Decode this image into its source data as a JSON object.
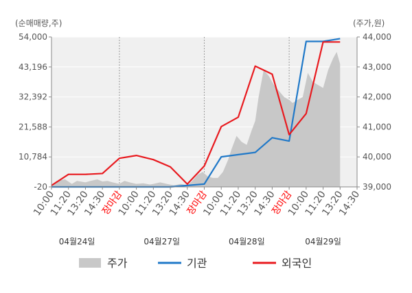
{
  "chart_data": {
    "type": "line",
    "left_unit": "(순매매량,주)",
    "right_unit": "(주가,원)",
    "left_ticks": [
      "54,000",
      "43,196",
      "32,392",
      "21,588",
      "10,784",
      "-20"
    ],
    "left_ylim": [
      -20,
      54000
    ],
    "right_ticks": [
      "44,000",
      "43,000",
      "42,000",
      "41,000",
      "40,000",
      "39,000"
    ],
    "right_ylim": [
      39000,
      44000
    ],
    "x_labels": [
      "10:00",
      "11:20",
      "13:20",
      "14:30",
      "장마감",
      "10:00",
      "11:20",
      "13:20",
      "14:30",
      "장마감",
      "10:00",
      "11:20",
      "13:20",
      "14:30",
      "장마감",
      "10:00",
      "11:20",
      "13:20",
      "14:30"
    ],
    "x_label_is_close": [
      false,
      false,
      false,
      false,
      true,
      false,
      false,
      false,
      false,
      true,
      false,
      false,
      false,
      false,
      true,
      false,
      false,
      false,
      false
    ],
    "dates": [
      "04월24일",
      "04월27일",
      "04월28일",
      "04월29일"
    ],
    "series": [
      {
        "name": "주가",
        "kind": "area",
        "color": "#c8c8c8",
        "axis": "right",
        "x": [
          0,
          0.3,
          0.8,
          1.2,
          1.5,
          2.0,
          2.3,
          2.7,
          3.0,
          3.3,
          3.6,
          4.0,
          4.3,
          4.6,
          5.0,
          5.4,
          5.8,
          6.0,
          6.4,
          6.8,
          7.2,
          7.6,
          8.0,
          8.3,
          8.6,
          8.9,
          9.2,
          9.5,
          9.8,
          10.1,
          10.4,
          10.6,
          10.9,
          11.2,
          11.5,
          11.8,
          12.0,
          12.2,
          12.5,
          12.8,
          13.1,
          13.4,
          13.7,
          14.0,
          14.2,
          14.5,
          14.8,
          15.1,
          15.4,
          15.7,
          16.0,
          16.3,
          16.6,
          16.8,
          17.0
        ],
        "values": [
          39050,
          39200,
          39250,
          39100,
          39200,
          39150,
          39200,
          39250,
          39180,
          39200,
          39150,
          39100,
          39200,
          39150,
          39100,
          39120,
          39080,
          39100,
          39150,
          39100,
          39050,
          39100,
          39050,
          39200,
          39400,
          39500,
          39350,
          39300,
          39300,
          39500,
          39900,
          40250,
          40700,
          40500,
          40400,
          40900,
          41200,
          42000,
          42900,
          42700,
          42400,
          42200,
          42000,
          41900,
          41800,
          41900,
          42000,
          42800,
          42500,
          42400,
          42300,
          42900,
          43300,
          43500,
          43100
        ]
      },
      {
        "name": "기관",
        "kind": "line",
        "color": "#1f78c8",
        "axis": "left",
        "x": [
          0,
          1,
          2,
          3,
          4,
          5,
          6,
          7,
          8,
          9,
          10,
          11,
          12,
          13,
          14,
          15,
          16,
          17
        ],
        "values": [
          -20,
          -20,
          -20,
          -20,
          -20,
          -20,
          -20,
          -20,
          500,
          1000,
          10800,
          11600,
          12400,
          17700,
          16500,
          52400,
          52400,
          53400
        ]
      },
      {
        "name": "외국인",
        "kind": "line",
        "color": "#e8191e",
        "axis": "left",
        "x": [
          0,
          1,
          2,
          3,
          4,
          5,
          6,
          7,
          8,
          9,
          10,
          11,
          12,
          13,
          14,
          15,
          16,
          17
        ],
        "values": [
          500,
          4500,
          4500,
          4800,
          10300,
          11300,
          9800,
          7200,
          1000,
          7500,
          21700,
          25100,
          43500,
          40600,
          18800,
          26400,
          52200,
          52200
        ]
      }
    ],
    "legend_position": "bottom",
    "grid": true
  }
}
